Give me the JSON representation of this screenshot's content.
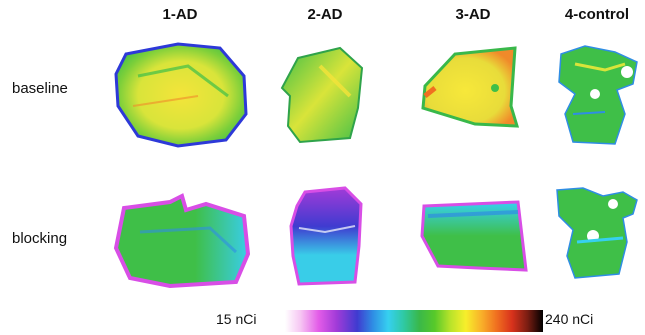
{
  "columns": [
    "1-AD",
    "2-AD",
    "3-AD",
    "4-control"
  ],
  "rows": [
    "baseline",
    "blocking"
  ],
  "scale": {
    "min_label": "15 nCi",
    "max_label": "240 nCi"
  },
  "colors": {
    "edge_blue": "#2d39d8",
    "green": "#3fbf48",
    "yellow": "#f4e43a",
    "orange": "#f08a2a",
    "cyan": "#39cde8",
    "magenta": "#d84ee6",
    "purple": "#8a36d6"
  }
}
